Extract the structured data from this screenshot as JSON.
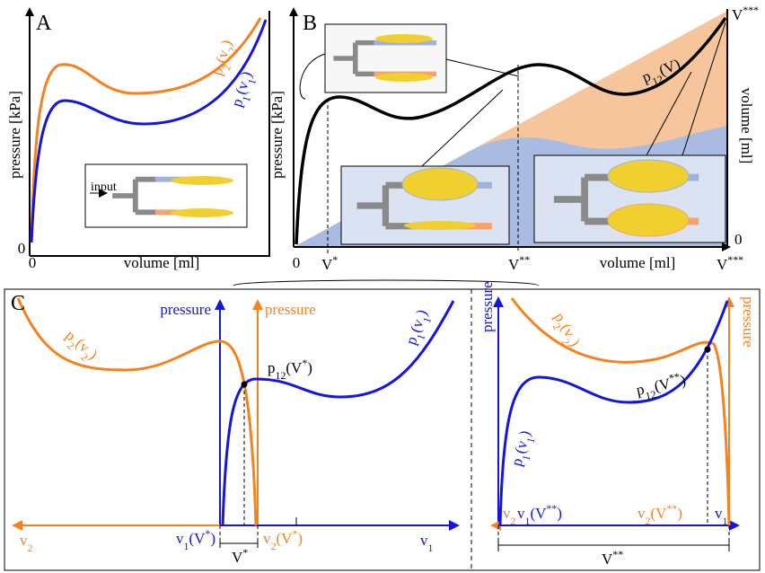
{
  "panel_a": {
    "label": "A",
    "y_axis": "pressure [kPa]",
    "x_axis": "volume [ml]",
    "origin_x": "0",
    "origin_y": "0",
    "curve_2": [
      {
        "t": "p"
      },
      {
        "sub": "2"
      },
      {
        "t": "(v"
      },
      {
        "sub": "2"
      },
      {
        "t": ")"
      }
    ],
    "curve_1": [
      {
        "t": "p"
      },
      {
        "sub": "1"
      },
      {
        "t": "(v"
      },
      {
        "sub": "1"
      },
      {
        "t": ")"
      }
    ],
    "inset_input": "input"
  },
  "panel_b": {
    "label": "B",
    "y_axis": "pressure [kPa]",
    "x_axis": "volume [ml]",
    "y2_axis": "volume [ml]",
    "origin_x": "0",
    "origin_y2": "0",
    "curve": [
      {
        "t": "p"
      },
      {
        "sub": "12"
      },
      {
        "t": "(V)"
      }
    ],
    "v1": [
      {
        "t": "V"
      },
      {
        "sup": "*"
      }
    ],
    "v2": [
      {
        "t": "V"
      },
      {
        "sup": "**"
      }
    ],
    "v3_bottom": [
      {
        "t": "V"
      },
      {
        "sup": "***"
      }
    ],
    "v3_top": [
      {
        "t": "V"
      },
      {
        "sup": "***"
      }
    ]
  },
  "panel_c": {
    "label": "C",
    "left": {
      "pressure_1": "pressure",
      "pressure_2": "pressure",
      "curve_2": [
        {
          "t": "p"
        },
        {
          "sub": "2"
        },
        {
          "t": "(v"
        },
        {
          "sub": "2"
        },
        {
          "t": ")"
        }
      ],
      "curve_1": [
        {
          "t": "p"
        },
        {
          "sub": "1"
        },
        {
          "t": "(v"
        },
        {
          "sub": "1"
        },
        {
          "t": ")"
        }
      ],
      "point": [
        {
          "t": "p"
        },
        {
          "sub": "12"
        },
        {
          "t": "(V"
        },
        {
          "sup": "*"
        },
        {
          "t": ")"
        }
      ],
      "axis_v2": [
        {
          "t": "v"
        },
        {
          "sub": "2"
        }
      ],
      "axis_v1": [
        {
          "t": "v"
        },
        {
          "sub": "1"
        }
      ],
      "v1_at": [
        {
          "t": "v"
        },
        {
          "sub": "1"
        },
        {
          "t": "(V"
        },
        {
          "sup": "*"
        },
        {
          "t": ")"
        }
      ],
      "v2_at": [
        {
          "t": "v"
        },
        {
          "sub": "2"
        },
        {
          "t": "(V"
        },
        {
          "sup": "*"
        },
        {
          "t": ")"
        }
      ],
      "total": [
        {
          "t": "V"
        },
        {
          "sup": "*"
        }
      ]
    },
    "right": {
      "pressure_1": "pressure",
      "pressure_2": "pressure",
      "curve_2": [
        {
          "t": "p"
        },
        {
          "sub": "2"
        },
        {
          "t": "(v"
        },
        {
          "sub": "2"
        },
        {
          "t": ")"
        }
      ],
      "curve_1": [
        {
          "t": "p"
        },
        {
          "sub": "1"
        },
        {
          "t": "(v"
        },
        {
          "sub": "1"
        },
        {
          "t": ")"
        }
      ],
      "point": [
        {
          "t": "p"
        },
        {
          "sub": "12"
        },
        {
          "t": "(V"
        },
        {
          "sup": "**"
        },
        {
          "t": ")"
        }
      ],
      "axis_v2": [
        {
          "t": "v"
        },
        {
          "sub": "2"
        }
      ],
      "axis_v1": [
        {
          "t": "v"
        },
        {
          "sub": "1"
        }
      ],
      "v1_at": [
        {
          "t": "v"
        },
        {
          "sub": "1"
        },
        {
          "t": "(V"
        },
        {
          "sup": "**"
        },
        {
          "t": ")"
        }
      ],
      "v2_at": [
        {
          "t": "v"
        },
        {
          "sub": "2"
        },
        {
          "t": "(V"
        },
        {
          "sup": "**"
        },
        {
          "t": ")"
        }
      ],
      "total": [
        {
          "t": "V"
        },
        {
          "sup": "**"
        }
      ]
    }
  }
}
